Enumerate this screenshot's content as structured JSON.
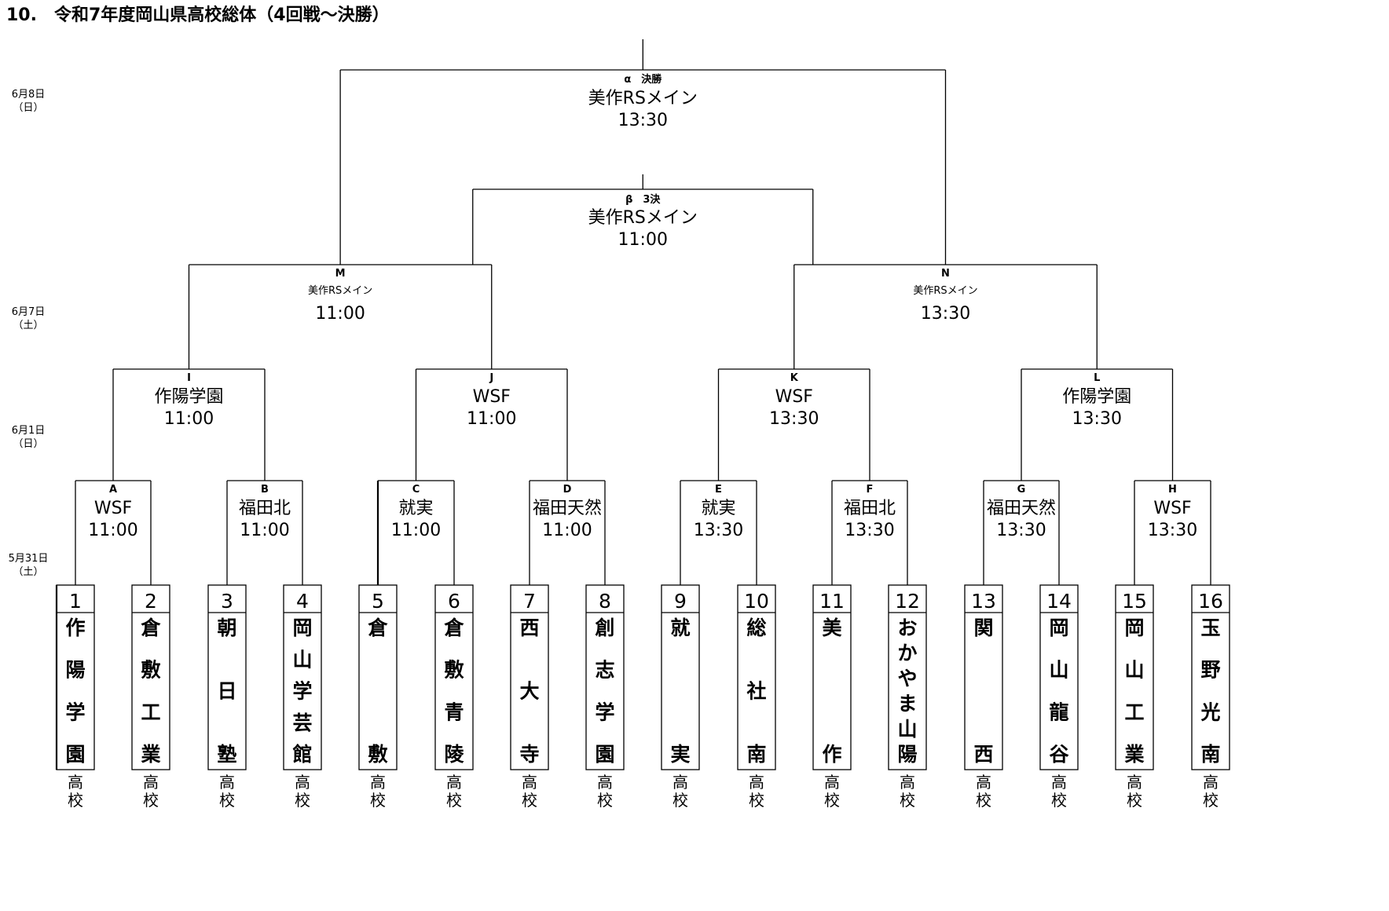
{
  "title": "10.　令和7年度岡山県高校総体（4回戦～決勝）",
  "dates": [
    {
      "date": "6月8日",
      "day": "（日）"
    },
    {
      "date": "6月7日",
      "day": "（土）"
    },
    {
      "date": "6月1日",
      "day": "（日）"
    },
    {
      "date": "5月31日",
      "day": "（土）"
    }
  ],
  "final": {
    "label": "α　決勝",
    "venue": "美作RSメイン",
    "time": "13:30"
  },
  "third_place": {
    "label": "β　3決",
    "venue": "美作RSメイン",
    "time": "11:00"
  },
  "semifinals": [
    {
      "label": "M",
      "venue": "美作RSメイン",
      "time": "11:00"
    },
    {
      "label": "N",
      "venue": "美作RSメイン",
      "time": "13:30"
    }
  ],
  "quarterfinals": [
    {
      "label": "I",
      "venue": "作陽学園",
      "time": "11:00"
    },
    {
      "label": "J",
      "venue": "WSF",
      "time": "11:00"
    },
    {
      "label": "K",
      "venue": "WSF",
      "time": "13:30"
    },
    {
      "label": "L",
      "venue": "作陽学園",
      "time": "13:30"
    }
  ],
  "round4": [
    {
      "label": "A",
      "venue": "WSF",
      "time": "11:00"
    },
    {
      "label": "B",
      "venue": "福田北",
      "time": "11:00"
    },
    {
      "label": "C",
      "venue": "就実",
      "time": "11:00"
    },
    {
      "label": "D",
      "venue": "福田天然",
      "time": "11:00"
    },
    {
      "label": "E",
      "venue": "就実",
      "time": "13:30"
    },
    {
      "label": "F",
      "venue": "福田北",
      "time": "13:30"
    },
    {
      "label": "G",
      "venue": "福田天然",
      "time": "13:30"
    },
    {
      "label": "H",
      "venue": "WSF",
      "time": "13:30"
    }
  ],
  "teams": [
    {
      "num": "1",
      "name": "作陽学園"
    },
    {
      "num": "2",
      "name": "倉敷工業"
    },
    {
      "num": "3",
      "name": "朝日塾"
    },
    {
      "num": "4",
      "name": "岡山学芸館"
    },
    {
      "num": "5",
      "name": "倉敷"
    },
    {
      "num": "6",
      "name": "倉敷青陵"
    },
    {
      "num": "7",
      "name": "西大寺"
    },
    {
      "num": "8",
      "name": "創志学園"
    },
    {
      "num": "9",
      "name": "就実"
    },
    {
      "num": "10",
      "name": "総社南"
    },
    {
      "num": "11",
      "name": "美作"
    },
    {
      "num": "12",
      "name": "おかやま山陽"
    },
    {
      "num": "13",
      "name": "関西"
    },
    {
      "num": "14",
      "name": "岡山龍谷"
    },
    {
      "num": "15",
      "name": "岡山工業"
    },
    {
      "num": "16",
      "name": "玉野光南"
    }
  ],
  "school_suffix": "高校"
}
